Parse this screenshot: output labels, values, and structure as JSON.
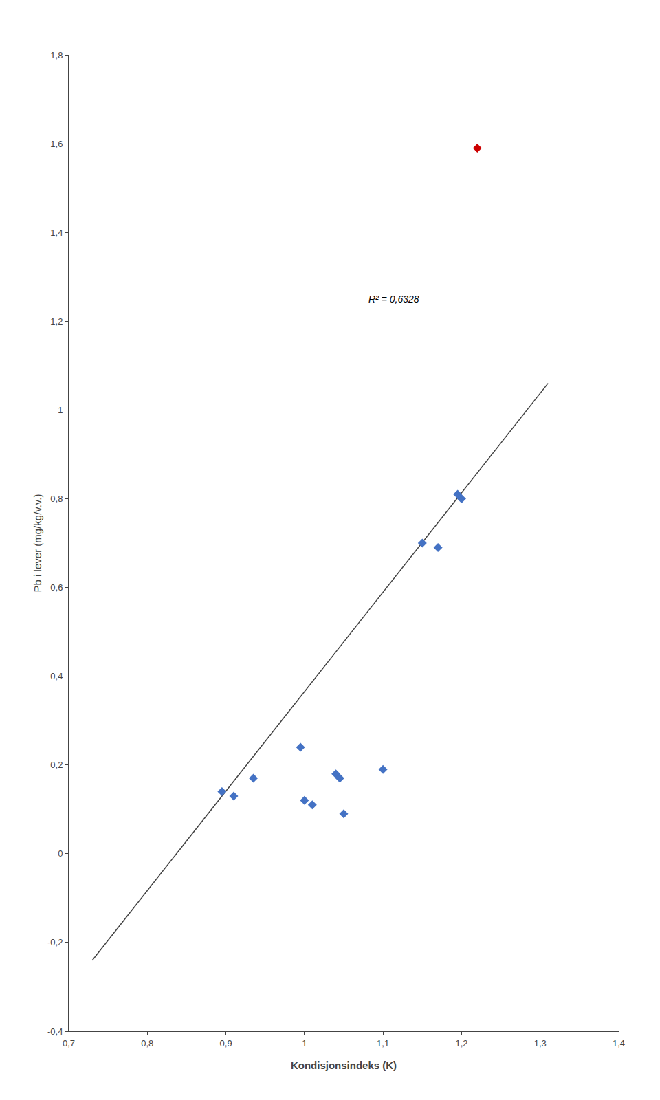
{
  "chart_data": {
    "type": "scatter",
    "xlabel": "Kondisjonsindeks (K)",
    "ylabel": "Pb i lever (mg/kg/v.v.)",
    "series": [
      {
        "type": "scatter",
        "color": "#4472C4",
        "marker": "diamond",
        "x": [
          0.895,
          0.91,
          0.935,
          0.995,
          1.0,
          1.01,
          1.04,
          1.045,
          1.05,
          1.1,
          1.15,
          1.17,
          1.195,
          1.2
        ],
        "values": [
          0.14,
          0.13,
          0.17,
          0.24,
          0.12,
          0.11,
          0.18,
          0.17,
          0.09,
          0.19,
          0.7,
          0.69,
          0.81,
          0.8
        ]
      },
      {
        "type": "scatter",
        "color": "#CC0000",
        "marker": "diamond",
        "x": [
          1.22
        ],
        "values": [
          1.59
        ]
      },
      {
        "type": "line",
        "color": "#404040",
        "line_style": "solid",
        "x": [
          0.73,
          1.31
        ],
        "values": [
          -0.24,
          1.06
        ]
      }
    ],
    "annotations": [
      {
        "text": "R² = 0,6328",
        "x": 1.08,
        "y": 1.25
      }
    ],
    "xlim": [
      0.7,
      1.4
    ],
    "xticks": [
      {
        "value": 0.7,
        "label": "0,7"
      },
      {
        "value": 0.8,
        "label": "0,8"
      },
      {
        "value": 0.9,
        "label": "0,9"
      },
      1,
      {
        "value": 1.1,
        "label": "1,1"
      },
      {
        "value": 1.2,
        "label": "1,2"
      },
      {
        "value": 1.3,
        "label": "1,3"
      },
      {
        "value": 1.4,
        "label": "1,4"
      }
    ],
    "ylim": [
      -0.4,
      1.8
    ],
    "yticks": [
      {
        "value": -0.4,
        "label": "-0,4"
      },
      {
        "value": -0.2,
        "label": "-0,2"
      },
      0,
      {
        "value": 0.2,
        "label": "0,2"
      },
      {
        "value": 0.4,
        "label": "0,4"
      },
      {
        "value": 0.6,
        "label": "0,6"
      },
      {
        "value": 0.8,
        "label": "0,8"
      },
      1,
      {
        "value": 1.2,
        "label": "1,2"
      },
      {
        "value": 1.4,
        "label": "1,4"
      },
      {
        "value": 1.6,
        "label": "1,6"
      },
      {
        "value": 1.8,
        "label": "1,8"
      }
    ],
    "grid": false
  }
}
